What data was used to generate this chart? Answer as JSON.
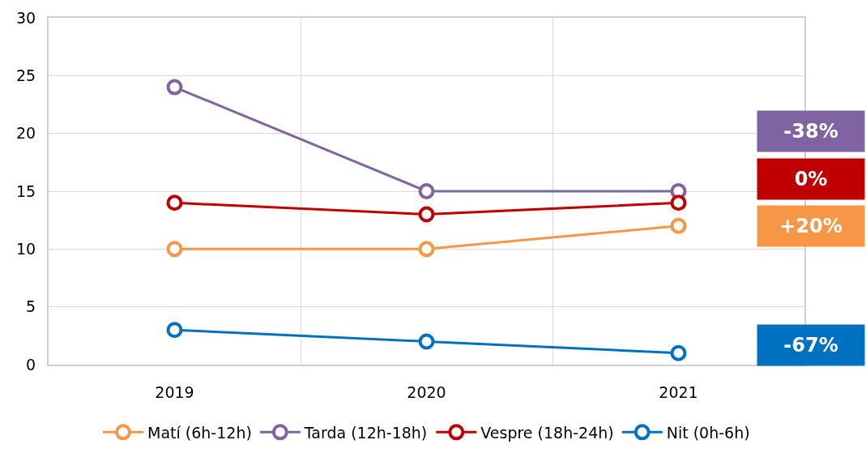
{
  "chart_data": {
    "type": "line",
    "categories": [
      "2019",
      "2020",
      "2021"
    ],
    "series": [
      {
        "name": "Matí (6h-12h)",
        "color": "#f79646",
        "values": [
          10,
          10,
          12
        ]
      },
      {
        "name": "Tarda (12h-18h)",
        "color": "#8064a2",
        "values": [
          24,
          15,
          15
        ]
      },
      {
        "name": "Vespre (18h-24h)",
        "color": "#c00000",
        "values": [
          14,
          13,
          14
        ]
      },
      {
        "name": "Nit (0h-6h)",
        "color": "#0070c0",
        "values": [
          3,
          2,
          1
        ]
      }
    ],
    "ylim": [
      0,
      30
    ],
    "yticks": [
      0,
      5,
      10,
      15,
      20,
      25,
      30
    ],
    "grid": true,
    "legend": "bottom",
    "marker": "circle",
    "line_style": "solid",
    "annotations": [
      "-38%",
      "0%",
      "+20%",
      "-67%"
    ]
  }
}
